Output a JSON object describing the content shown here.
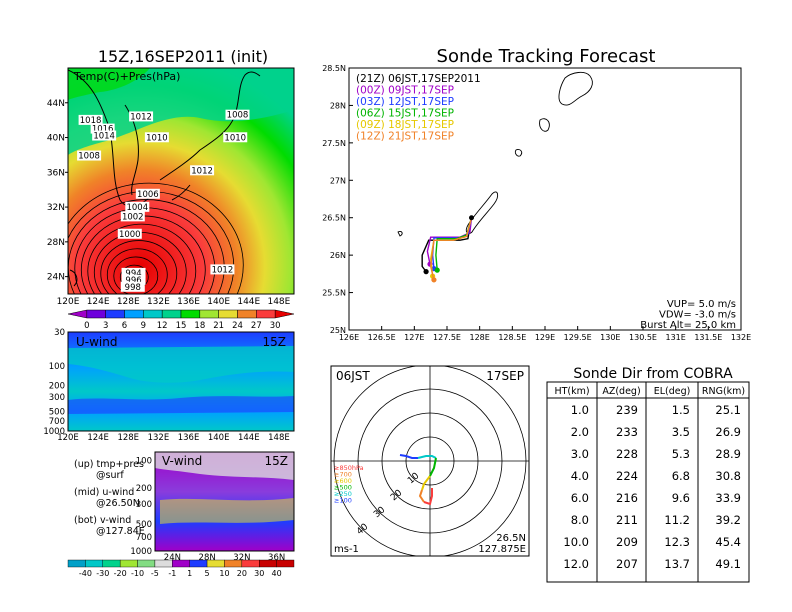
{
  "left_title": "15Z,16SEP2011 (init)",
  "right_title": "Sonde Tracking Forecast",
  "map": {
    "label": "Temp(C)+Pres(hPa)",
    "lat_ticks": [
      "44N",
      "40N",
      "36N",
      "32N",
      "28N",
      "24N"
    ],
    "lon_ticks": [
      "120E",
      "124E",
      "128E",
      "132E",
      "136E",
      "140E",
      "144E",
      "148E"
    ],
    "pres_labels": [
      {
        "text": "1018",
        "lon": 123.0,
        "lat": 41.8
      },
      {
        "text": "1016",
        "lon": 124.6,
        "lat": 40.8
      },
      {
        "text": "1014",
        "lon": 124.8,
        "lat": 40.0
      },
      {
        "text": "1012",
        "lon": 129.7,
        "lat": 42.2
      },
      {
        "text": "1010",
        "lon": 131.8,
        "lat": 39.8
      },
      {
        "text": "1008",
        "lon": 142.5,
        "lat": 42.4
      },
      {
        "text": "1010",
        "lon": 142.2,
        "lat": 39.8
      },
      {
        "text": "1008",
        "lon": 122.8,
        "lat": 37.7
      },
      {
        "text": "1012",
        "lon": 137.8,
        "lat": 36.0
      },
      {
        "text": "1006",
        "lon": 130.6,
        "lat": 33.3
      },
      {
        "text": "1004",
        "lon": 129.2,
        "lat": 31.8
      },
      {
        "text": "1002",
        "lon": 128.6,
        "lat": 30.7
      },
      {
        "text": "1000",
        "lon": 128.2,
        "lat": 28.7
      },
      {
        "text": "1012",
        "lon": 140.5,
        "lat": 24.6
      },
      {
        "text": "994",
        "lon": 128.7,
        "lat": 24.2
      },
      {
        "text": "996",
        "lon": 128.7,
        "lat": 23.4
      },
      {
        "text": "998",
        "lon": 128.6,
        "lat": 22.6
      }
    ]
  },
  "temp_colorbar": {
    "labels": [
      "0",
      "3",
      "6",
      "9",
      "12",
      "15",
      "18",
      "21",
      "24",
      "27",
      "30"
    ],
    "colors": [
      "#a000c8",
      "#6e00dc",
      "#1e3cff",
      "#00a0ff",
      "#00c8c8",
      "#00d28c",
      "#00dc00",
      "#a0e632",
      "#e6dc32",
      "#f08228",
      "#fa3c3c",
      "#e60000"
    ]
  },
  "uwind": {
    "label": "U-wind",
    "time": "15Z",
    "y_ticks": [
      "30",
      "100",
      "200",
      "300",
      "500",
      "700",
      "1000"
    ],
    "x_ticks": [
      "120E",
      "124E",
      "128E",
      "132E",
      "136E",
      "140E",
      "144E",
      "148E"
    ]
  },
  "vwind": {
    "label": "V-wind",
    "time": "15Z",
    "y_ticks": [
      "100",
      "200",
      "300",
      "500",
      "700",
      "1000"
    ],
    "x_ticks": [
      "24N",
      "28N",
      "32N",
      "36N"
    ]
  },
  "notes": [
    {
      "l1": "(up) tmp+pres",
      "l2": "@surf"
    },
    {
      "l1": "(mid) u-wind",
      "l2": "@26.50N"
    },
    {
      "l1": "(bot) v-wind",
      "l2": "@127.84E"
    }
  ],
  "wind_colorbar": {
    "labels": [
      "-40",
      "-30",
      "-20",
      "-10",
      "-5",
      "-1",
      "1",
      "5",
      "10",
      "20",
      "30",
      "40"
    ],
    "colors": [
      "#00a0c8",
      "#00c8c8",
      "#00d28c",
      "#a0e632",
      "#82dc82",
      "#dcdcdc",
      "#a000c8",
      "#1e3cff",
      "#e6dc32",
      "#f08228",
      "#fa3c3c",
      "#c80000"
    ]
  },
  "track": {
    "lat_ticks": [
      "28.5N",
      "28N",
      "27.5N",
      "27N",
      "26.5N",
      "26N",
      "25.5N",
      "25N"
    ],
    "lon_ticks": [
      "126E",
      "126.5E",
      "127E",
      "127.5E",
      "128E",
      "128.5E",
      "129E",
      "129.5E",
      "130E",
      "130.5E",
      "131E",
      "131.5E",
      "132E"
    ],
    "legend": [
      {
        "text": "(21Z)  06JST,17SEP2011",
        "color": "#000000"
      },
      {
        "text": "(00Z)  09JST,17SEP",
        "color": "#a000c8"
      },
      {
        "text": "(03Z)  12JST,17SEP",
        "color": "#1e3cff"
      },
      {
        "text": "(06Z)  15JST,17SEP",
        "color": "#00b400"
      },
      {
        "text": "(09Z)  18JST,17SEP",
        "color": "#e6c800"
      },
      {
        "text": "(12Z)  21JST,17SEP",
        "color": "#f08228"
      }
    ],
    "params": [
      "VUP=  5.0  m/s",
      "VDW= -3.0  m/s",
      "Burst Alt=  25.0  km"
    ]
  },
  "polar": {
    "left": "06JST",
    "right": "17SEP",
    "legend": [
      "≥850hPa",
      "≥700",
      "≥600",
      "≥500",
      "≥250",
      "≥100"
    ],
    "legend_colors": [
      "#fa3c3c",
      "#f08228",
      "#e6c800",
      "#00b400",
      "#00c8c8",
      "#1e3cff"
    ],
    "ring_labels": [
      "10",
      "20",
      "30",
      "40"
    ],
    "unit": "ms-1",
    "loc1": "26.5N",
    "loc2": "127.875E"
  },
  "cobra": {
    "title": "Sonde Dir from COBRA",
    "headers": [
      "HT(km)",
      "AZ(deg)",
      "EL(deg)",
      "RNG(km)"
    ],
    "rows": [
      [
        "1.0",
        "239",
        "1.5",
        "25.1"
      ],
      [
        "2.0",
        "233",
        "3.5",
        "26.9"
      ],
      [
        "3.0",
        "228",
        "5.3",
        "28.9"
      ],
      [
        "4.0",
        "224",
        "6.8",
        "30.8"
      ],
      [
        "6.0",
        "216",
        "9.6",
        "33.9"
      ],
      [
        "8.0",
        "211",
        "11.2",
        "39.2"
      ],
      [
        "10.0",
        "209",
        "12.3",
        "45.4"
      ],
      [
        "12.0",
        "207",
        "13.7",
        "49.1"
      ]
    ]
  },
  "chart_data": [
    {
      "type": "heatmap",
      "title": "15Z,16SEP2011 (init)",
      "subtitle": "Temp(C)+Pres(hPa)",
      "xlim": [
        120,
        150
      ],
      "ylim": [
        22,
        48
      ],
      "colorbar": [
        "0",
        "3",
        "6",
        "9",
        "12",
        "15",
        "18",
        "21",
        "24",
        "27",
        "30"
      ],
      "contour_labels": [
        "1018",
        "1016",
        "1014",
        "1012",
        "1010",
        "1008",
        "1010",
        "1008",
        "1012",
        "1006",
        "1004",
        "1002",
        "1000",
        "1012",
        "994",
        "996",
        "998"
      ]
    },
    {
      "type": "heatmap",
      "title": "U-wind",
      "subtitle": "15Z",
      "ylim": [
        1000,
        30
      ],
      "xlim": [
        120,
        150
      ]
    },
    {
      "type": "heatmap",
      "title": "V-wind",
      "subtitle": "15Z",
      "ylim": [
        1000,
        100
      ],
      "xlim": [
        22,
        38
      ],
      "colorbar": [
        "-40",
        "-30",
        "-20",
        "-10",
        "-5",
        "-1",
        "1",
        "5",
        "10",
        "20",
        "30",
        "40"
      ]
    },
    {
      "type": "line",
      "title": "Sonde Tracking Forecast",
      "xlim": [
        126,
        132
      ],
      "ylim": [
        25,
        28.5
      ],
      "start": [
        127.875,
        26.5
      ],
      "series": [
        {
          "name": "(21Z)  06JST,17SEP2011",
          "x": [
            127.875,
            127.82,
            127.7,
            127.22,
            127.12,
            127.12,
            127.18
          ],
          "y": [
            26.5,
            26.22,
            26.2,
            26.2,
            26.0,
            25.85,
            25.78
          ]
        },
        {
          "name": "(00Z)  09JST,17SEP",
          "x": [
            127.875,
            127.85,
            127.7,
            127.25,
            127.2,
            127.24
          ],
          "y": [
            26.5,
            26.3,
            26.24,
            26.24,
            26.05,
            25.88
          ]
        },
        {
          "name": "(03Z)  12JST,17SEP",
          "x": [
            127.875,
            127.82,
            127.7,
            127.3,
            127.28,
            127.3
          ],
          "y": [
            26.5,
            26.28,
            26.23,
            26.23,
            26.0,
            25.82
          ]
        },
        {
          "name": "(06Z)  15JST,17SEP",
          "x": [
            127.875,
            127.8,
            127.65,
            127.35,
            127.33,
            127.35
          ],
          "y": [
            26.5,
            26.27,
            26.22,
            26.22,
            26.0,
            25.8
          ]
        },
        {
          "name": "(09Z)  18JST,17SEP",
          "x": [
            127.875,
            127.8,
            127.6,
            127.3,
            127.25,
            127.28
          ],
          "y": [
            26.5,
            26.25,
            26.2,
            26.2,
            25.95,
            25.72
          ]
        },
        {
          "name": "(12Z)  21JST,17SEP",
          "x": [
            127.875,
            127.8,
            127.6,
            127.3,
            127.25,
            127.3
          ],
          "y": [
            26.5,
            26.25,
            26.2,
            26.2,
            25.85,
            25.67
          ]
        }
      ]
    },
    {
      "type": "table",
      "title": "Sonde Dir from COBRA",
      "columns": [
        "HT(km)",
        "AZ(deg)",
        "EL(deg)",
        "RNG(km)"
      ],
      "rows": [
        [
          "1.0",
          "239",
          "1.5",
          "25.1"
        ],
        [
          "2.0",
          "233",
          "3.5",
          "26.9"
        ],
        [
          "3.0",
          "228",
          "5.3",
          "28.9"
        ],
        [
          "4.0",
          "224",
          "6.8",
          "30.8"
        ],
        [
          "6.0",
          "216",
          "9.6",
          "33.9"
        ],
        [
          "8.0",
          "211",
          "11.2",
          "39.2"
        ],
        [
          "10.0",
          "209",
          "12.3",
          "45.4"
        ],
        [
          "12.0",
          "207",
          "13.7",
          "49.1"
        ]
      ]
    }
  ]
}
